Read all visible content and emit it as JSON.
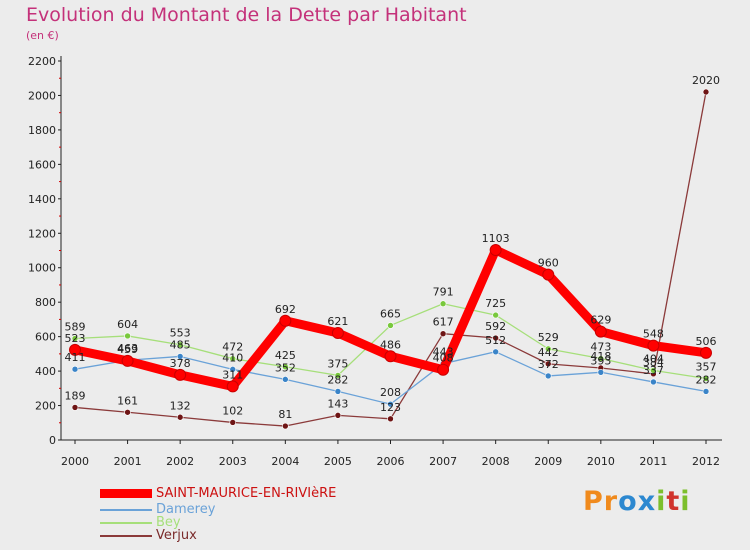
{
  "chart_data": {
    "type": "line",
    "title": "Evolution du Montant de la Dette par Habitant",
    "subtitle": "(en €)",
    "categories": [
      "2000",
      "2001",
      "2002",
      "2003",
      "2004",
      "2005",
      "2006",
      "2007",
      "2008",
      "2009",
      "2010",
      "2011",
      "2012"
    ],
    "yticks": [
      0,
      200,
      400,
      600,
      800,
      1000,
      1200,
      1400,
      1600,
      1800,
      2000,
      2200
    ],
    "ylim": [
      0,
      2200
    ],
    "grid": false,
    "legend_position": "bottom-left",
    "series": [
      {
        "name": "SAINT-MAURICE-EN-RIVIèRE",
        "color": "#ff0000",
        "marker": "#ff0000",
        "values": [
          523,
          459,
          378,
          311,
          692,
          621,
          486,
          408,
          1103,
          960,
          629,
          548,
          506
        ]
      },
      {
        "name": "Damerey",
        "color": "#6aa2d8",
        "marker": "#3a84c8",
        "values": [
          411,
          463,
          485,
          410,
          352,
          282,
          208,
          443,
          512,
          372,
          393,
          337,
          282
        ]
      },
      {
        "name": "Bey",
        "color": "#a6df7a",
        "marker": "#78c83c",
        "values": [
          589,
          604,
          553,
          472,
          425,
          375,
          665,
          791,
          725,
          529,
          473,
          404,
          357
        ]
      },
      {
        "name": "Verjux",
        "color": "#8b3a3a",
        "marker": "#6e1414",
        "values": [
          189,
          161,
          132,
          102,
          81,
          143,
          123,
          617,
          592,
          442,
          418,
          384,
          2020
        ]
      }
    ]
  },
  "logo": {
    "text": "Proxiti",
    "letters": [
      "P",
      "r",
      "o",
      "x",
      "i",
      "t",
      "i"
    ],
    "colors": [
      "#f08a1c",
      "#f08a1c",
      "#2c88d0",
      "#2c88d0",
      "#7cbf2c",
      "#d0332c",
      "#7cbf2c"
    ]
  }
}
